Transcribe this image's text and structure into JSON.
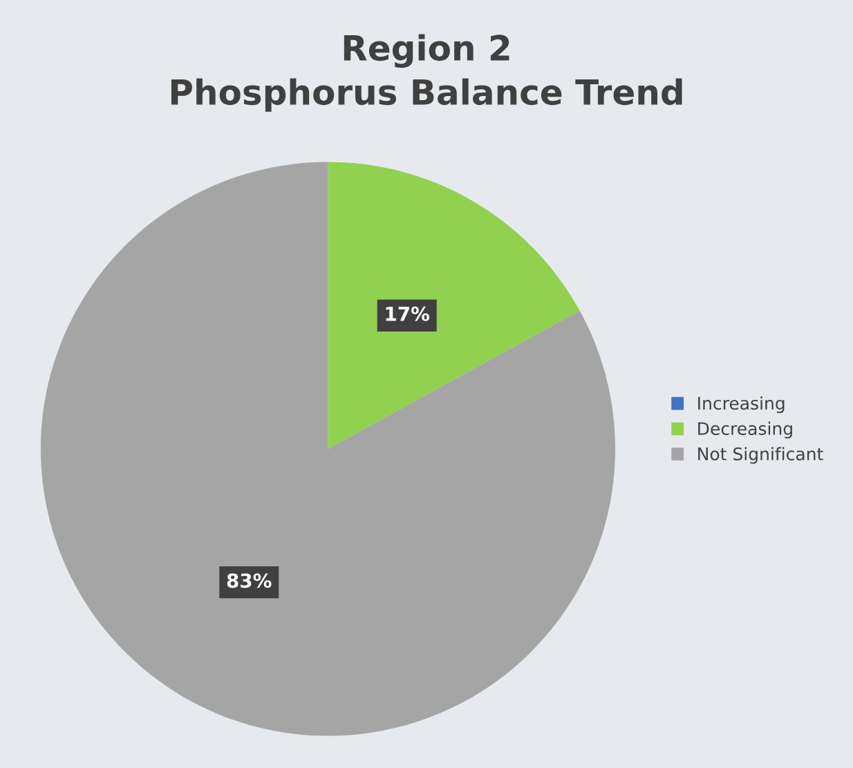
{
  "chart_data": {
    "type": "pie",
    "title": "Region 2\nPhosphorus Balance Trend",
    "categories": [
      "Increasing",
      "Decreasing",
      "Not Significant"
    ],
    "values": [
      0,
      17,
      83
    ],
    "colors": [
      "#4472c4",
      "#92d050",
      "#a5a5a5"
    ],
    "value_labels": [
      null,
      "17%",
      "83%"
    ],
    "legend": "right"
  }
}
